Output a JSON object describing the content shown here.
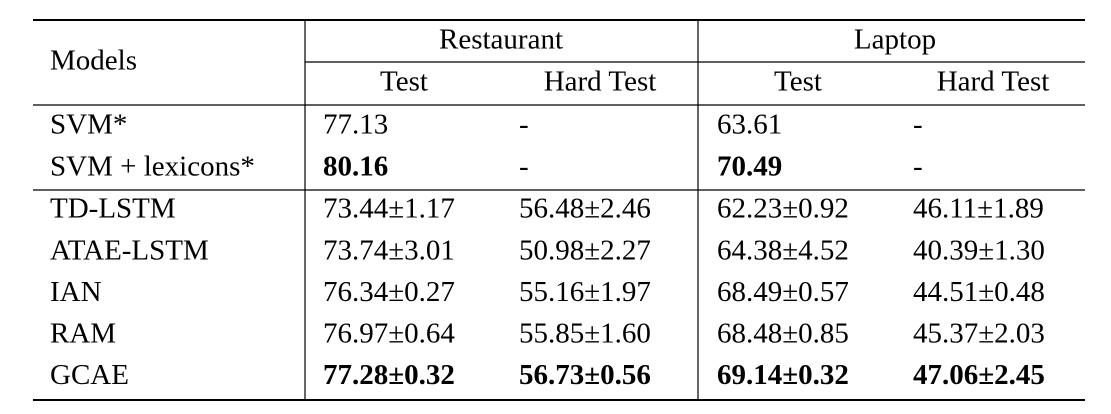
{
  "header": {
    "models": "Models",
    "groups": [
      "Restaurant",
      "Laptop"
    ],
    "subheaders": [
      "Test",
      "Hard Test",
      "Test",
      "Hard Test"
    ]
  },
  "sections": [
    [
      {
        "model": "SVM*",
        "cells": [
          "77.13",
          "-",
          "63.61",
          "-"
        ],
        "bold": []
      },
      {
        "model": "SVM + lexicons*",
        "cells": [
          "80.16",
          "-",
          "70.49",
          "-"
        ],
        "bold": [
          0,
          2
        ]
      }
    ],
    [
      {
        "model": "TD-LSTM",
        "cells": [
          "73.44±1.17",
          "56.48±2.46",
          "62.23±0.92",
          "46.11±1.89"
        ],
        "bold": []
      },
      {
        "model": "ATAE-LSTM",
        "cells": [
          "73.74±3.01",
          "50.98±2.27",
          "64.38±4.52",
          "40.39±1.30"
        ],
        "bold": []
      },
      {
        "model": "IAN",
        "cells": [
          "76.34±0.27",
          "55.16±1.97",
          "68.49±0.57",
          "44.51±0.48"
        ],
        "bold": []
      },
      {
        "model": "RAM",
        "cells": [
          "76.97±0.64",
          "55.85±1.60",
          "68.48±0.85",
          "45.37±2.03"
        ],
        "bold": []
      },
      {
        "model": "GCAE",
        "cells": [
          "77.28±0.32",
          "56.73±0.56",
          "69.14±0.32",
          "47.06±2.45"
        ],
        "bold": [
          0,
          1,
          2,
          3
        ]
      }
    ]
  ]
}
